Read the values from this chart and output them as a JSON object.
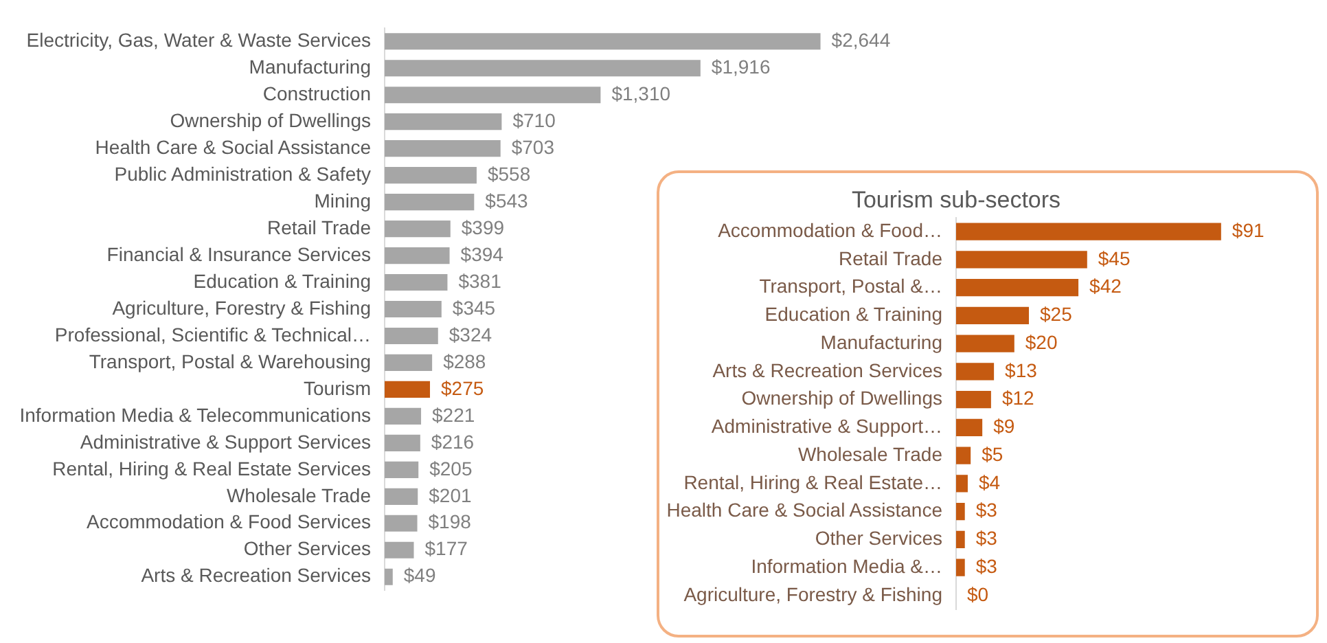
{
  "chart_data": [
    {
      "type": "bar",
      "orientation": "horizontal",
      "tick_labels": "y",
      "grid": false,
      "legend": false,
      "categories": [
        "Electricity, Gas, Water & Waste Services",
        "Manufacturing",
        "Construction",
        "Ownership of Dwellings",
        "Health Care & Social Assistance",
        "Public Administration & Safety",
        "Mining",
        "Retail Trade",
        "Financial & Insurance Services",
        "Education & Training",
        "Agriculture, Forestry & Fishing",
        "Professional, Scientific & Technical…",
        "Transport, Postal & Warehousing",
        "Tourism",
        "Information Media & Telecommunications",
        "Administrative & Support Services",
        "Rental, Hiring & Real Estate Services",
        "Wholesale Trade",
        "Accommodation & Food Services",
        "Other Services",
        "Arts & Recreation Services"
      ],
      "values": [
        2644,
        1916,
        1310,
        710,
        703,
        558,
        543,
        399,
        394,
        381,
        345,
        324,
        288,
        275,
        221,
        216,
        205,
        201,
        198,
        177,
        49
      ],
      "colors": [
        "#a6a6a6",
        "#a6a6a6",
        "#a6a6a6",
        "#a6a6a6",
        "#a6a6a6",
        "#a6a6a6",
        "#a6a6a6",
        "#a6a6a6",
        "#a6a6a6",
        "#a6a6a6",
        "#a6a6a6",
        "#a6a6a6",
        "#a6a6a6",
        "#c55a11",
        "#a6a6a6",
        "#a6a6a6",
        "#a6a6a6",
        "#a6a6a6",
        "#a6a6a6",
        "#a6a6a6",
        "#a6a6a6"
      ],
      "value_labels": [
        "$2,644",
        "$1,916",
        "$1,310",
        "$710",
        "$703",
        "$558",
        "$543",
        "$399",
        "$394",
        "$381",
        "$345",
        "$324",
        "$288",
        "$275",
        "$221",
        "$216",
        "$205",
        "$201",
        "$198",
        "$177",
        "$49"
      ]
    },
    {
      "type": "bar",
      "orientation": "horizontal",
      "tick_labels": "y",
      "grid": false,
      "legend": false,
      "title": "Tourism sub-sectors",
      "color": "#c55a11",
      "categories": [
        "Accommodation & Food…",
        "Retail Trade",
        "Transport, Postal &…",
        "Education & Training",
        "Manufacturing",
        "Arts & Recreation Services",
        "Ownership of Dwellings",
        "Administrative & Support…",
        "Wholesale Trade",
        "Rental, Hiring & Real Estate…",
        "Health Care & Social Assistance",
        "Other Services",
        "Information Media &…",
        "Agriculture, Forestry & Fishing"
      ],
      "values": [
        91,
        45,
        42,
        25,
        20,
        13,
        12,
        9,
        5,
        4,
        3,
        3,
        3,
        0
      ],
      "value_labels": [
        "$91",
        "$45",
        "$42",
        "$25",
        "$20",
        "$13",
        "$12",
        "$9",
        "$5",
        "$4",
        "$3",
        "$3",
        "$3",
        "$0"
      ]
    }
  ]
}
